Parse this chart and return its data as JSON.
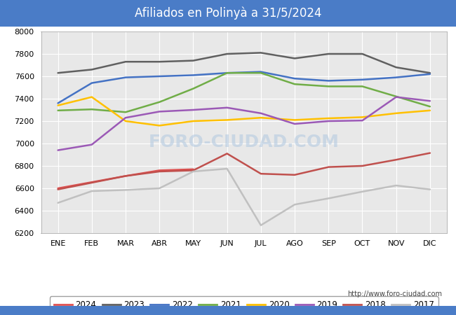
{
  "title": "Afiliados en Polinyà a 31/5/2024",
  "title_bg_color": "#4a7cc7",
  "title_text_color": "white",
  "ylim": [
    6200,
    8000
  ],
  "yticks": [
    6200,
    6400,
    6600,
    6800,
    7000,
    7200,
    7400,
    7600,
    7800,
    8000
  ],
  "months": [
    "ENE",
    "FEB",
    "MAR",
    "ABR",
    "MAY",
    "JUN",
    "JUL",
    "AGO",
    "SEP",
    "OCT",
    "NOV",
    "DIC"
  ],
  "watermark_center": "FORO-CIUDAD.COM",
  "watermark_url": "http://www.foro-ciudad.com",
  "chart_bg": "#e8e8e8",
  "series": [
    {
      "label": "2024",
      "color": "#e05050",
      "linewidth": 1.8,
      "values": [
        6600,
        6655,
        6710,
        6760,
        6770,
        null,
        null,
        null,
        null,
        null,
        null,
        null
      ]
    },
    {
      "label": "2023",
      "color": "#606060",
      "linewidth": 1.8,
      "values": [
        7630,
        7660,
        7730,
        7730,
        7740,
        7800,
        7810,
        7760,
        7800,
        7800,
        7680,
        7630
      ]
    },
    {
      "label": "2022",
      "color": "#4472c4",
      "linewidth": 1.8,
      "values": [
        7360,
        7540,
        7590,
        7600,
        7610,
        7630,
        7640,
        7580,
        7560,
        7570,
        7590,
        7620
      ]
    },
    {
      "label": "2021",
      "color": "#70ad47",
      "linewidth": 1.8,
      "values": [
        7295,
        7305,
        7280,
        7370,
        7490,
        7630,
        7630,
        7530,
        7510,
        7510,
        7420,
        7330
      ]
    },
    {
      "label": "2020",
      "color": "#ffc000",
      "linewidth": 1.8,
      "values": [
        7340,
        7415,
        7200,
        7160,
        7200,
        7210,
        7230,
        7210,
        7225,
        7235,
        7270,
        7295
      ]
    },
    {
      "label": "2019",
      "color": "#9b59b6",
      "linewidth": 1.8,
      "values": [
        6940,
        6990,
        7230,
        7285,
        7300,
        7320,
        7270,
        7175,
        7200,
        7205,
        7415,
        7380
      ]
    },
    {
      "label": "2018",
      "color": "#c0504d",
      "linewidth": 1.8,
      "values": [
        6590,
        6650,
        6710,
        6750,
        6760,
        6910,
        6730,
        6720,
        6790,
        6800,
        6855,
        6915
      ]
    },
    {
      "label": "2017",
      "color": "#c0c0c0",
      "linewidth": 1.8,
      "values": [
        6470,
        6575,
        6585,
        6600,
        6750,
        6775,
        6270,
        6455,
        6510,
        6570,
        6625,
        6590
      ]
    }
  ]
}
